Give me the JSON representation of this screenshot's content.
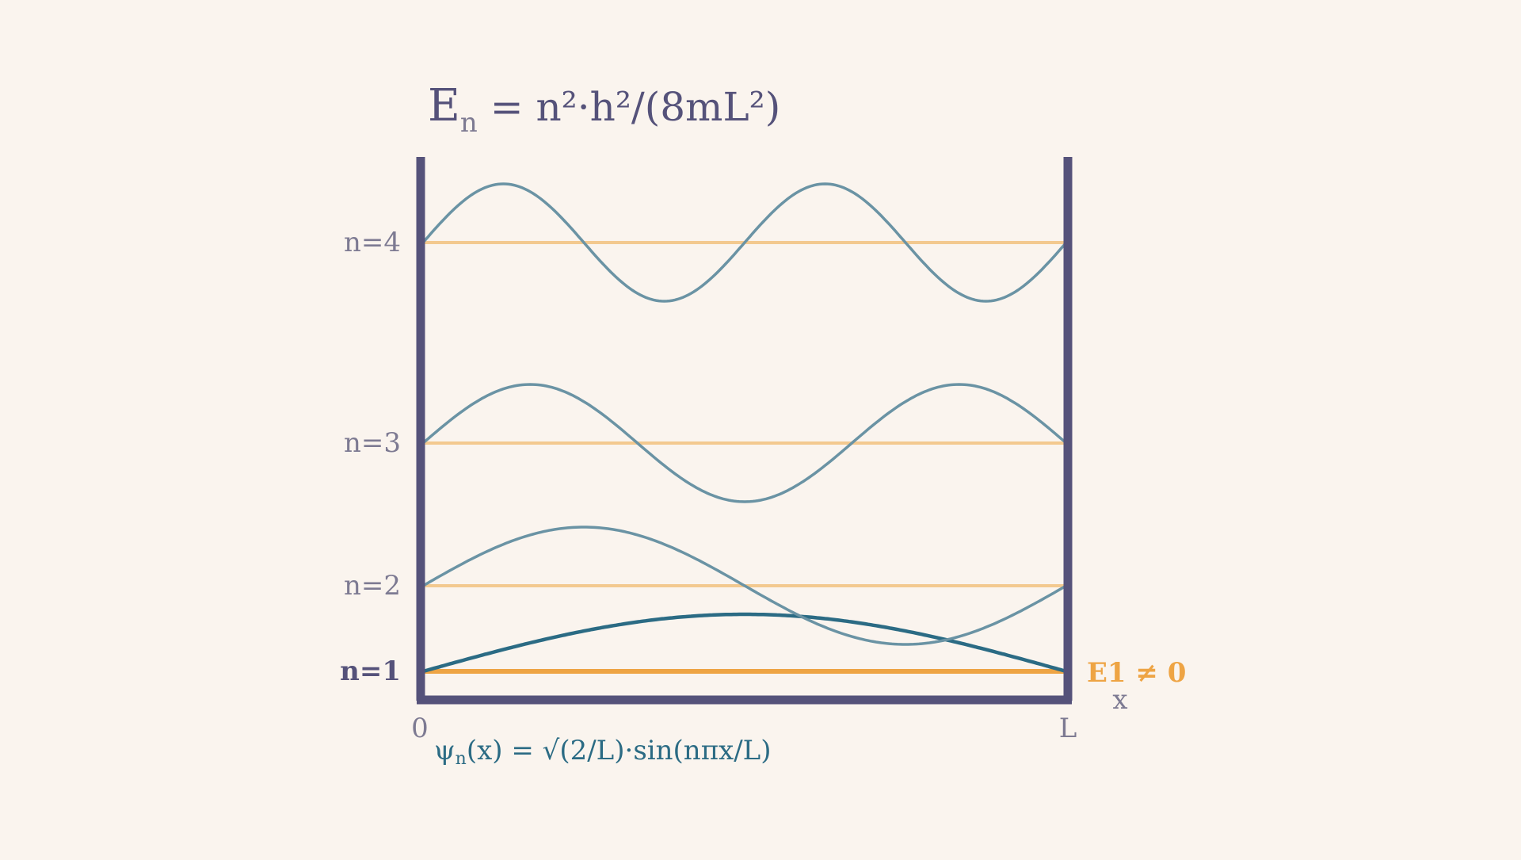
{
  "title": {
    "main": "E",
    "sub": "n",
    "rest": " = n²·h²/(8mL²)"
  },
  "levels": [
    {
      "n": 1,
      "label": "n=1"
    },
    {
      "n": 2,
      "label": "n=2"
    },
    {
      "n": 3,
      "label": "n=3"
    },
    {
      "n": 4,
      "label": "n=4"
    }
  ],
  "axis": {
    "zero_label": "0",
    "L_label": "L",
    "x_label": "x"
  },
  "zero_point_label": "E1 ≠ 0",
  "wavefunction": {
    "main": "ψ",
    "sub": "n",
    "rest": "(x) = √(2/L)·sin(nπx/L)"
  },
  "colors": {
    "background": "#faf4ee",
    "well": "#55527a",
    "level_line": "#f3c98f",
    "ground_level": "#eea444",
    "wave": "#6a93a4",
    "ground_wave": "#2b6b84",
    "label": "#7d7a92",
    "accent": "#eea444"
  }
}
